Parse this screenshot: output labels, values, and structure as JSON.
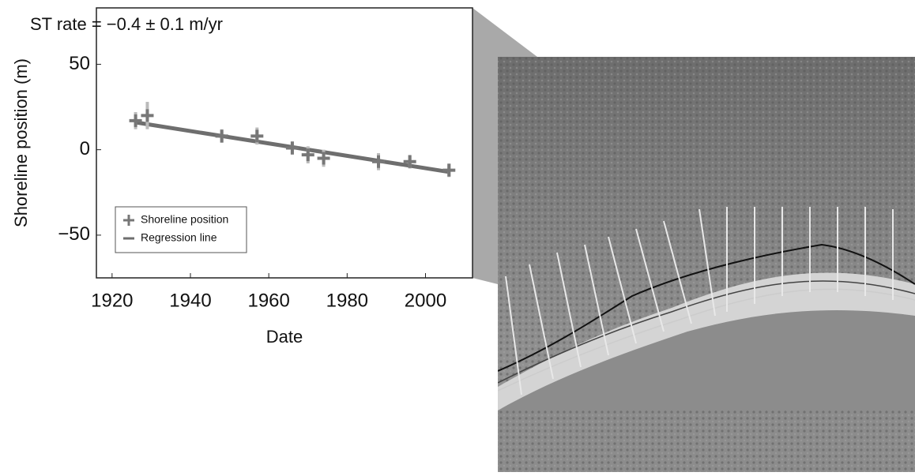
{
  "chart_data": {
    "type": "scatter",
    "annotation": "ST rate = −0.4 ± 0.1 m/yr",
    "x_label": "Date",
    "y_label": "Shoreline position (m)",
    "xlim": [
      1916,
      2012
    ],
    "xticks": [
      1920,
      1940,
      1960,
      1980,
      2000
    ],
    "ylim": [
      -75,
      83
    ],
    "yticks": [
      {
        "value": -50,
        "label": "−50"
      },
      0,
      50
    ],
    "legend": "lower left",
    "series": [
      {
        "name": "Shoreline position",
        "color": "#777777",
        "x": [
          1926,
          1929,
          1948,
          1957,
          1966,
          1970,
          1974,
          1988,
          1996,
          2006
        ],
        "values": [
          17,
          20,
          8,
          8,
          1,
          -3,
          -5,
          -7,
          -7,
          -12
        ],
        "errors": [
          5,
          8,
          4,
          5,
          4,
          5,
          5,
          5,
          4,
          4
        ]
      },
      {
        "name": "Regression line",
        "color": "#6e6e6e",
        "x": [
          1926,
          2006
        ],
        "values": [
          16,
          -13
        ]
      }
    ]
  }
}
